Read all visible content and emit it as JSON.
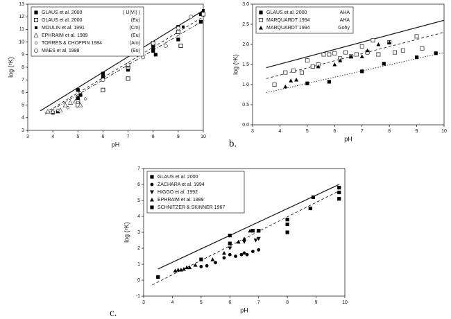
{
  "chart_data": [
    {
      "type": "scatter",
      "xlabel": "pH",
      "ylabel": "log (ᶜK)",
      "xlim": [
        3,
        10
      ],
      "ylim": [
        3,
        13
      ],
      "xticks": [
        3,
        4,
        5,
        6,
        7,
        8,
        9,
        10
      ],
      "yticks": [
        3,
        4,
        5,
        6,
        7,
        8,
        9,
        10,
        11,
        12,
        13
      ],
      "series": [
        {
          "name": "GLAUS et al. 2000",
          "note": "( U(VI) )",
          "marker": "square",
          "color": "#000000",
          "x": [
            4,
            4.2,
            5,
            5,
            5.1,
            6,
            6,
            7,
            7,
            8,
            8,
            8.1,
            9,
            9,
            9.9,
            9.9
          ],
          "values": [
            4.4,
            4.5,
            5.5,
            6.2,
            5.8,
            7.2,
            7.5,
            7.8,
            8.0,
            9.3,
            9.6,
            9.0,
            11.2,
            10.2,
            12.2,
            11.6
          ]
        },
        {
          "name": "GLAUS et al. 2000",
          "note": "(Eu)",
          "marker": "open-square",
          "color": "#000000",
          "x": [
            5,
            5,
            6,
            7,
            7,
            8,
            9,
            9.1,
            10
          ],
          "values": [
            5.0,
            5.3,
            6.2,
            7.1,
            8.0,
            9.9,
            10.8,
            9.7,
            12.2
          ]
        },
        {
          "name": "MOULIN et al. 1991",
          "note": "(Cm)",
          "marker": "small-square",
          "color": "#000000",
          "x": [
            5,
            6,
            7,
            8,
            9,
            9.2,
            10
          ],
          "values": [
            5.6,
            7.3,
            8.1,
            9.4,
            11.1,
            11.2,
            12.5
          ]
        },
        {
          "name": "EPHRAIM et al. 1989",
          "note": "(Eu)",
          "marker": "open-triangle",
          "color": "#555555",
          "x": [
            3.8,
            4,
            4.3,
            4.5,
            4.7,
            4.9,
            5.1
          ],
          "values": [
            4.5,
            4.5,
            4.6,
            5.0,
            5.2,
            5.3,
            5.0
          ]
        },
        {
          "name": "TORRES & CHOPPIN 1984",
          "note": "(Am)",
          "marker": "small-circle",
          "color": "#555555",
          "x": [
            4.2,
            4.6,
            5.0,
            5.3
          ],
          "values": [
            4.6,
            4.8,
            5.2,
            5.5
          ]
        },
        {
          "name": "MAES et al. 1988",
          "note": "(Eu)",
          "marker": "open-circle",
          "color": "#555555",
          "x": [
            6,
            7,
            7.6,
            8,
            8.5,
            9,
            9.5
          ],
          "values": [
            7.0,
            8.2,
            8.8,
            9.9,
            9.7,
            11.1,
            12.0
          ]
        }
      ],
      "fits": [
        {
          "style": "solid",
          "x": [
            3.5,
            10
          ],
          "values": [
            4.55,
            12.5
          ]
        },
        {
          "style": "dashed",
          "x": [
            3.7,
            10
          ],
          "values": [
            4.4,
            12.0
          ]
        },
        {
          "style": "dashdot",
          "x": [
            3.7,
            10
          ],
          "values": [
            4.3,
            11.7
          ]
        }
      ]
    },
    {
      "type": "scatter",
      "panel_label": "b.",
      "xlabel": "pH",
      "ylabel": "log (ᶜK)",
      "xlim": [
        3,
        10
      ],
      "ylim": [
        0,
        3
      ],
      "xticks": [
        3,
        4,
        5,
        6,
        7,
        8,
        9,
        10
      ],
      "yticks": [
        {
          "value": 0,
          "label": "0.0"
        },
        0.5,
        {
          "value": 1,
          "label": "1.0"
        },
        1.5,
        {
          "value": 2,
          "label": "2.0"
        },
        2.5,
        {
          "value": 3,
          "label": "3.0"
        }
      ],
      "series": [
        {
          "name": "GLAUS et al. 2000",
          "note": "AHA",
          "marker": "square",
          "color": "#000000",
          "x": [
            5,
            5.8,
            7,
            7.8,
            9,
            9.7
          ],
          "values": [
            1.03,
            1.07,
            1.33,
            1.52,
            1.68,
            1.78
          ]
        },
        {
          "name": "MARQUARDT 1994",
          "note": "AHA",
          "marker": "open-square",
          "color": "#333333",
          "x": [
            3.8,
            4.2,
            4.5,
            4.8,
            5,
            5.2,
            5.4,
            5.6,
            5.8,
            6,
            6.2,
            6.4,
            6.6,
            6.8,
            7,
            7.2,
            7.4,
            7.6,
            8,
            8.2,
            8.5,
            9,
            9.2
          ],
          "values": [
            1.0,
            1.3,
            1.35,
            1.3,
            1.6,
            1.45,
            1.5,
            1.75,
            1.75,
            1.78,
            1.65,
            1.8,
            1.7,
            1.75,
            1.95,
            1.8,
            2.1,
            1.75,
            2.05,
            1.8,
            1.85,
            2.2,
            1.9
          ]
        },
        {
          "name": "MARQUARDT 1994",
          "note": "Gohy",
          "marker": "triangle",
          "color": "#000000",
          "x": [
            4.2,
            4.4,
            4.6,
            5.4,
            6,
            6.2,
            6.6,
            7,
            7.2,
            7.6,
            8
          ],
          "values": [
            0.95,
            1.1,
            1.12,
            1.45,
            1.5,
            1.6,
            1.7,
            1.7,
            1.85,
            2.0,
            2.05
          ]
        }
      ],
      "fits": [
        {
          "style": "solid",
          "x": [
            3.5,
            10
          ],
          "values": [
            1.42,
            2.6
          ]
        },
        {
          "style": "dashed",
          "x": [
            3.5,
            10
          ],
          "values": [
            1.15,
            2.3
          ]
        },
        {
          "style": "dotted",
          "x": [
            3.5,
            10
          ],
          "values": [
            0.8,
            1.8
          ]
        }
      ]
    },
    {
      "type": "scatter",
      "panel_label": "c.",
      "xlabel": "pH",
      "ylabel": "log (ᶜK)",
      "xlim": [
        3,
        10
      ],
      "ylim": [
        -1,
        7
      ],
      "xticks": [
        3,
        4,
        5,
        6,
        7,
        8,
        9,
        10
      ],
      "yticks": [
        -1,
        0,
        1,
        2,
        3,
        4,
        5,
        6,
        7
      ],
      "series": [
        {
          "name": "GLAUS et al. 2000",
          "marker": "square",
          "color": "#000000",
          "x": [
            3.5,
            5,
            6,
            6,
            7,
            8,
            8,
            8.8,
            9.8,
            9.8
          ],
          "values": [
            0.2,
            1.3,
            2.3,
            2.8,
            3.1,
            3.5,
            3.0,
            4.5,
            5.5,
            5.1
          ]
        },
        {
          "name": "ZACHARA et al. 1994",
          "marker": "circle",
          "color": "#000000",
          "x": [
            5,
            5.2,
            5.5,
            5.8,
            6,
            6.2,
            6.4,
            6.5,
            6.6,
            6.8,
            7
          ],
          "values": [
            0.85,
            0.9,
            1.1,
            1.4,
            1.6,
            1.5,
            1.6,
            1.7,
            1.6,
            1.8,
            1.9
          ]
        },
        {
          "name": "HIGGO et al. 1992",
          "marker": "triangle-down",
          "color": "#000000",
          "x": [
            6,
            6.5,
            6.9,
            7
          ],
          "values": [
            2.0,
            2.4,
            2.5,
            2.6
          ]
        },
        {
          "name": "EPHRAIM et al. 1989",
          "marker": "triangle",
          "color": "#000000",
          "x": [
            4.1,
            4.2,
            4.3,
            4.4,
            4.5,
            4.6,
            4.8,
            5.4,
            5.8,
            6.3,
            6.5,
            6.7
          ],
          "values": [
            0.6,
            0.65,
            0.65,
            0.7,
            0.8,
            0.8,
            0.95,
            1.3,
            1.7,
            2.4,
            2.6,
            3.1
          ]
        },
        {
          "name": "SCHNITZER & SKINNER 1967",
          "marker": "square",
          "color": "#000000",
          "x": [
            6.8,
            7,
            8,
            8.9,
            9.8
          ],
          "values": [
            3.1,
            3.1,
            3.8,
            5.2,
            5.8
          ]
        }
      ],
      "fits": [
        {
          "style": "solid",
          "x": [
            3.5,
            9.8
          ],
          "values": [
            0.7,
            6.0
          ]
        },
        {
          "style": "dashed",
          "x": [
            3.3,
            9.8
          ],
          "values": [
            -0.3,
            5.6
          ]
        }
      ]
    }
  ]
}
